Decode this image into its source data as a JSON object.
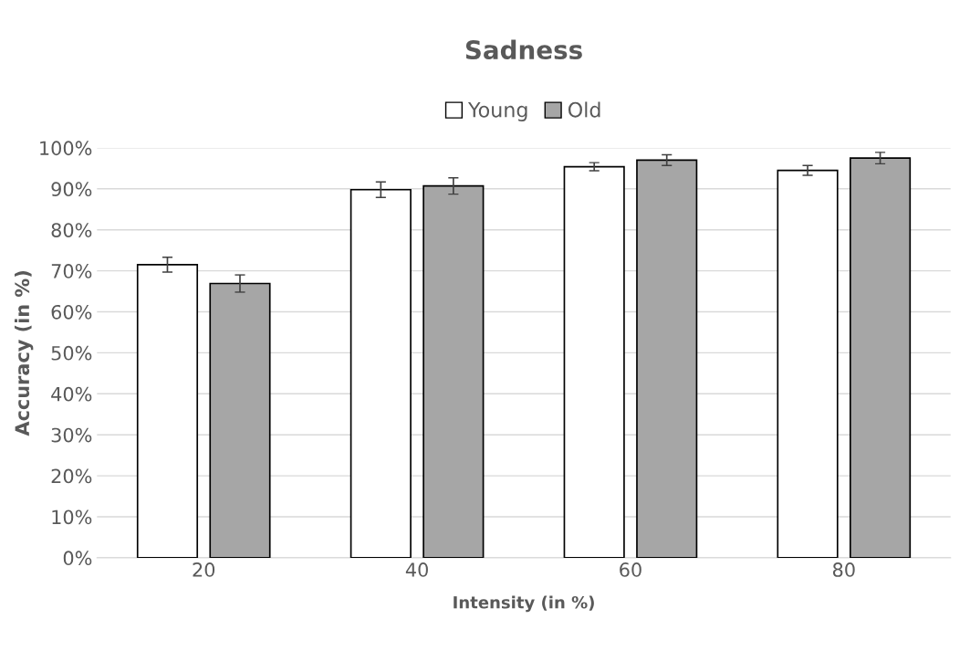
{
  "chart_data": {
    "type": "bar",
    "title": "Sadness",
    "xlabel": "Intensity (in %)",
    "ylabel": "Accuracy (in %)",
    "categories": [
      "20",
      "40",
      "60",
      "80"
    ],
    "series": [
      {
        "name": "Young",
        "color": "#ffffff",
        "values": [
          71.5,
          89.8,
          95.4,
          94.5
        ],
        "errors": [
          1.8,
          1.9,
          1.0,
          1.2
        ]
      },
      {
        "name": "Old",
        "color": "#a6a6a6",
        "values": [
          66.9,
          90.7,
          97.0,
          97.5
        ],
        "errors": [
          2.1,
          2.0,
          1.3,
          1.4
        ]
      }
    ],
    "ylim": [
      0,
      100
    ],
    "yticks": [
      {
        "value": 0,
        "label": "0%"
      },
      {
        "value": 10,
        "label": "10%"
      },
      {
        "value": 20,
        "label": "20%"
      },
      {
        "value": 30,
        "label": "30%"
      },
      {
        "value": 40,
        "label": "40%"
      },
      {
        "value": 50,
        "label": "50%"
      },
      {
        "value": 60,
        "label": "60%"
      },
      {
        "value": 70,
        "label": "70%"
      },
      {
        "value": 80,
        "label": "80%"
      },
      {
        "value": 90,
        "label": "90%"
      },
      {
        "value": 100,
        "label": "100%"
      }
    ],
    "grid": "y",
    "legend": "top"
  }
}
